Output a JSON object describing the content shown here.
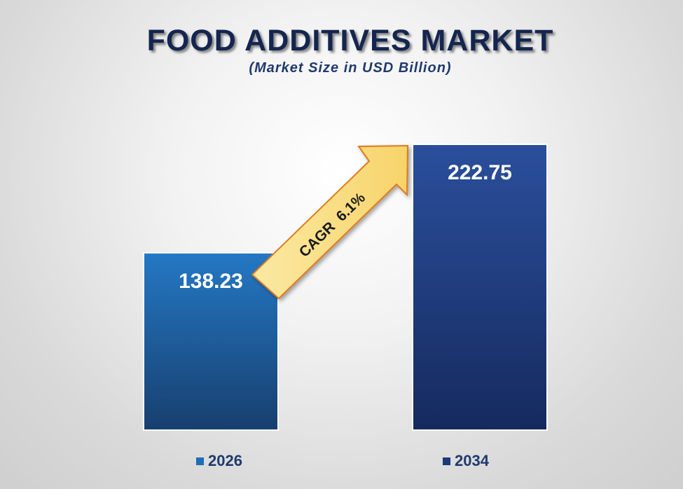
{
  "chart_data": {
    "type": "bar",
    "title": "FOOD ADDITIVES MARKET",
    "subtitle": "(Market Size in USD Billion)",
    "categories": [
      "2026",
      "2034"
    ],
    "values": [
      138.23,
      222.75
    ],
    "data_labels": [
      "138.23",
      "222.75"
    ],
    "colors": [
      "#1f6db5",
      "#1c3a7a"
    ],
    "annotation": "CAGR  6.1%",
    "legend": [
      "2026",
      "2034"
    ],
    "legend_position": "bottom",
    "grid": false,
    "ylim": [
      0,
      222.75
    ]
  }
}
